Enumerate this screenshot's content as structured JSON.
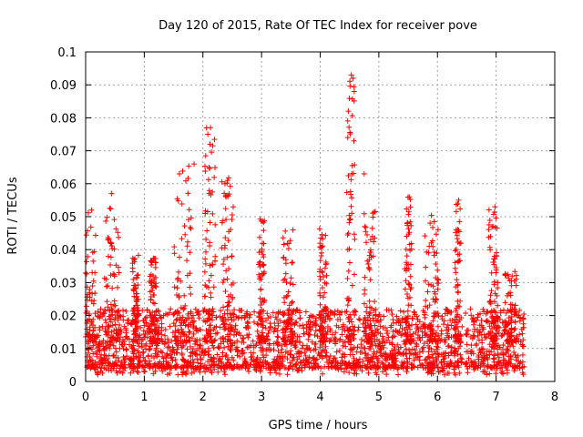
{
  "chart_data": {
    "type": "scatter",
    "title": "Day 120 of 2015, Rate Of TEC Index for receiver pove",
    "xlabel": "GPS time / hours",
    "ylabel": "ROTI / TECUs",
    "xlim": [
      0,
      8
    ],
    "ylim": [
      0,
      0.1
    ],
    "x_ticks": [
      "0",
      "1",
      "2",
      "3",
      "4",
      "5",
      "6",
      "7",
      "8"
    ],
    "y_ticks": [
      "0",
      "0.01",
      "0.02",
      "0.03",
      "0.04",
      "0.05",
      "0.06",
      "0.07",
      "0.08",
      "0.09",
      "0.1"
    ],
    "grid": true,
    "marker": "+",
    "marker_color": "#ff0000",
    "data_gaps_hours": [
      [
        6.42,
        6.47
      ],
      [
        7.48,
        8.0
      ]
    ],
    "baseline_band": [
      0.004,
      0.022
    ],
    "notable_points": [
      {
        "x": 4.53,
        "y": 0.093
      },
      {
        "x": 4.56,
        "y": 0.092
      },
      {
        "x": 4.58,
        "y": 0.088
      },
      {
        "x": 4.48,
        "y": 0.082
      },
      {
        "x": 4.47,
        "y": 0.074
      },
      {
        "x": 2.13,
        "y": 0.077
      },
      {
        "x": 2.12,
        "y": 0.072
      },
      {
        "x": 1.85,
        "y": 0.066
      },
      {
        "x": 1.6,
        "y": 0.063
      },
      {
        "x": 2.42,
        "y": 0.061
      },
      {
        "x": 0.44,
        "y": 0.057
      },
      {
        "x": 5.52,
        "y": 0.056
      },
      {
        "x": 6.36,
        "y": 0.055
      },
      {
        "x": 6.98,
        "y": 0.053
      },
      {
        "x": 0.1,
        "y": 0.052
      },
      {
        "x": 4.75,
        "y": 0.063
      }
    ],
    "activity_bursts": [
      {
        "x": 0.05,
        "w": 0.12,
        "peak": 0.052
      },
      {
        "x": 0.45,
        "w": 0.13,
        "peak": 0.057
      },
      {
        "x": 0.85,
        "w": 0.05,
        "peak": 0.039
      },
      {
        "x": 1.15,
        "w": 0.06,
        "peak": 0.038
      },
      {
        "x": 1.65,
        "w": 0.15,
        "peak": 0.066
      },
      {
        "x": 2.12,
        "w": 0.09,
        "peak": 0.077
      },
      {
        "x": 2.42,
        "w": 0.1,
        "peak": 0.062
      },
      {
        "x": 3.0,
        "w": 0.05,
        "peak": 0.05
      },
      {
        "x": 3.45,
        "w": 0.09,
        "peak": 0.046
      },
      {
        "x": 4.05,
        "w": 0.06,
        "peak": 0.048
      },
      {
        "x": 4.52,
        "w": 0.07,
        "peak": 0.093
      },
      {
        "x": 4.85,
        "w": 0.1,
        "peak": 0.052
      },
      {
        "x": 5.5,
        "w": 0.06,
        "peak": 0.056
      },
      {
        "x": 5.9,
        "w": 0.12,
        "peak": 0.052
      },
      {
        "x": 6.35,
        "w": 0.05,
        "peak": 0.055
      },
      {
        "x": 6.95,
        "w": 0.08,
        "peak": 0.053
      },
      {
        "x": 7.25,
        "w": 0.1,
        "peak": 0.036
      }
    ]
  }
}
